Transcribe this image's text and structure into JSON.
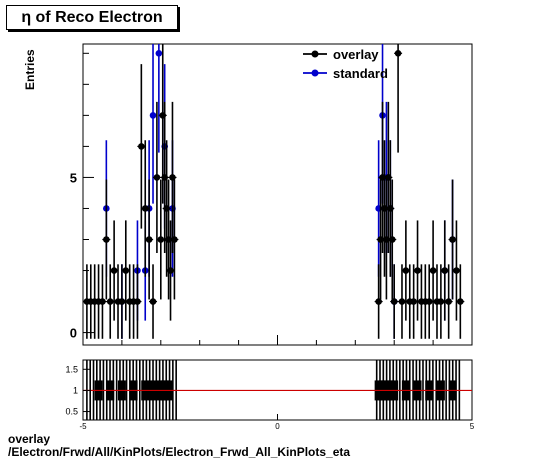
{
  "title": "η of Reco Electron",
  "footer": {
    "line1": "overlay",
    "line2": "/Electron/Frwd/All/KinPlots/Electron_Frwd_All_KinPlots_eta"
  },
  "colors": {
    "overlay": "#000000",
    "standard": "#0000cc",
    "ratio_line": "#cc0000"
  },
  "chart_data": [
    {
      "type": "scatter",
      "title": "η of Reco Electron",
      "xlabel": "",
      "ylabel": "Entries",
      "xlim": [
        -5,
        5
      ],
      "ylim": [
        -0.4,
        9.3
      ],
      "yticks": [
        0,
        5
      ],
      "legend": {
        "placement": "top-right",
        "entries": [
          "overlay",
          "standard"
        ]
      },
      "series": [
        {
          "name": "overlay",
          "x": [
            -4.9,
            -4.8,
            -4.7,
            -4.6,
            -4.5,
            -4.4,
            -4.3,
            -4.2,
            -4.1,
            -4.0,
            -3.9,
            -3.8,
            -3.7,
            -3.6,
            -3.5,
            -3.4,
            -3.3,
            -3.2,
            -3.1,
            -3.0,
            -2.95,
            -2.9,
            -2.85,
            -2.8,
            -2.75,
            -2.7,
            -2.65,
            2.6,
            2.65,
            2.7,
            2.75,
            2.8,
            2.85,
            2.9,
            2.95,
            3.0,
            3.1,
            3.2,
            3.3,
            3.4,
            3.5,
            3.6,
            3.7,
            3.8,
            3.9,
            4.0,
            4.1,
            4.2,
            4.3,
            4.4,
            4.5,
            4.6,
            4.7
          ],
          "y": [
            1,
            1,
            1,
            1,
            1,
            3,
            1,
            2,
            1,
            1,
            2,
            1,
            1,
            1,
            6,
            4,
            3,
            1,
            5,
            3,
            7,
            5,
            4,
            3,
            2,
            5,
            3,
            1,
            3,
            5,
            4,
            3,
            5,
            4,
            3,
            1,
            9,
            1,
            2,
            1,
            1,
            2,
            1,
            1,
            1,
            2,
            1,
            1,
            2,
            1,
            3,
            2,
            1
          ]
        },
        {
          "name": "standard",
          "x": [
            -4.4,
            -4.0,
            -3.6,
            -3.4,
            -3.3,
            -3.2,
            -3.05,
            -2.9,
            -2.7,
            2.6,
            2.7,
            2.8,
            2.9,
            3.0,
            4.3,
            4.5
          ],
          "y": [
            4,
            1,
            2,
            2,
            4,
            7,
            9,
            6,
            4,
            4,
            7,
            5,
            4,
            1,
            2,
            3
          ]
        }
      ]
    },
    {
      "type": "scatter",
      "title": "",
      "xlabel": "",
      "ylabel": "",
      "xlim": [
        -5,
        5
      ],
      "ylim": [
        0.3,
        1.72
      ],
      "yticks": [
        0.5,
        1,
        1.5
      ],
      "xticks": [
        -5,
        0,
        5
      ],
      "reference_line": 1,
      "series": [
        {
          "name": "",
          "x": [
            -4.6,
            -4.3,
            -4.0,
            -3.7,
            -3.4,
            -3.2,
            -3.0,
            -2.9,
            -2.8,
            2.6,
            2.7,
            2.8,
            2.9,
            3.0,
            3.3,
            3.6,
            3.9,
            4.2,
            4.5
          ],
          "y": [
            1.0,
            1.0,
            1.0,
            1.0,
            1.0,
            1.0,
            1.0,
            1.0,
            1.0,
            1.0,
            1.0,
            1.0,
            1.0,
            1.0,
            1.0,
            1.0,
            1.0,
            1.0,
            1.0
          ]
        }
      ]
    }
  ]
}
